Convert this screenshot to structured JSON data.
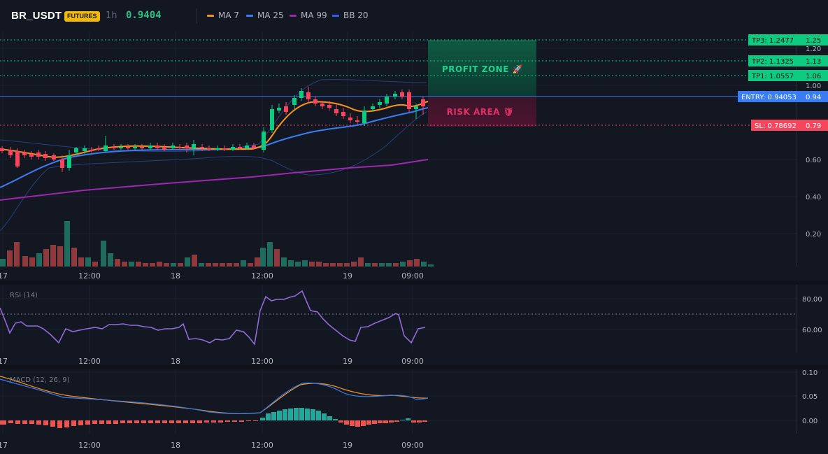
{
  "header": {
    "symbol": "BR_USDT",
    "badge": "FUTURES",
    "timeframe": "1h",
    "price": "0.9404",
    "legend": [
      {
        "label": "MA 7",
        "color": "#f7931a"
      },
      {
        "label": "MA 25",
        "color": "#3a7cf2"
      },
      {
        "label": "MA 99",
        "color": "#9c27b0"
      },
      {
        "label": "BB 20",
        "color": "#2962ff"
      }
    ]
  },
  "colors": {
    "up": "#26a69a",
    "down": "#ef5350",
    "candle_up": "#0ecb81",
    "candle_down": "#f6465d"
  },
  "price_scale": {
    "ticks": [
      "1.20",
      "1.00",
      "0.60",
      "0.40",
      "0.20"
    ]
  },
  "trade_levels": {
    "tp3": {
      "label": "TP3: 1.2477",
      "value": "1.25"
    },
    "tp2": {
      "label": "TP2: 1.1325",
      "value": "1.13"
    },
    "tp1": {
      "label": "TP1: 1.0557",
      "value": "1.06"
    },
    "entry": {
      "label": "ENTRY: 0.94053",
      "value": "0.94"
    },
    "sl": {
      "label": "SL: 0.78692",
      "value": "0.79"
    }
  },
  "zones": {
    "profit": "PROFIT ZONE 🚀",
    "risk": "RISK AREA 🛡"
  },
  "time_axis": [
    "17",
    "12:00",
    "18",
    "12:00",
    "19",
    "09:00"
  ],
  "rsi": {
    "title": "RSI (14)",
    "ticks": [
      "80.00",
      "60.00"
    ]
  },
  "macd": {
    "title": "MACD (12, 26, 9)",
    "ticks": [
      "0.10",
      "0.05",
      "0.00"
    ]
  }
}
